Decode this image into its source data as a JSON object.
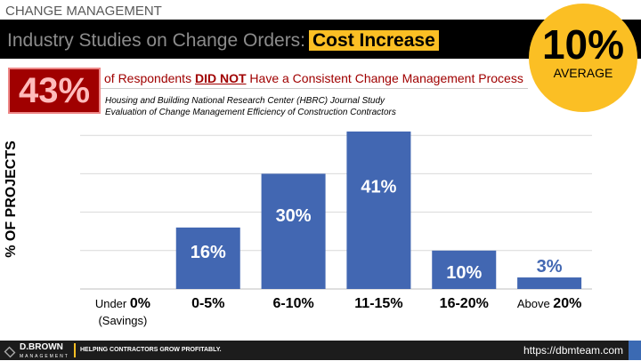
{
  "header": {
    "section": "CHANGE MANAGEMENT",
    "title": "Industry Studies on Change Orders:",
    "highlight": "Cost Increase"
  },
  "average": {
    "value": "10%",
    "label": "AVERAGE"
  },
  "stat": {
    "value": "43%",
    "pre": "of Respondents",
    "emph": "DID NOT",
    "post": "Have a Consistent Change Management Process"
  },
  "source": {
    "line1": "Housing and Building National Research Center (HBRC) Journal Study",
    "line2": "Evaluation of Change Management Efficiency of Construction Contractors"
  },
  "footer": {
    "brand": "D.BROWN",
    "brand_sub": "MANAGEMENT",
    "tagline": "HELPING CONTRACTORS GROW PROFITABLY.",
    "url": "https://dbmteam.com"
  },
  "colors": {
    "bar": "#4267b2",
    "accent": "#fbbf24",
    "red": "#a00000"
  },
  "chart_data": {
    "type": "bar",
    "ylabel": "% OF PROJECTS",
    "ylim": [
      0,
      40
    ],
    "grid": true,
    "categories": [
      {
        "pre": "Under ",
        "bold": "0%",
        "sub": "(Savings)"
      },
      {
        "pre": "",
        "bold": "0-5%",
        "sub": ""
      },
      {
        "pre": "",
        "bold": "6-10%",
        "sub": ""
      },
      {
        "pre": "",
        "bold": "11-15%",
        "sub": ""
      },
      {
        "pre": "",
        "bold": "16-20%",
        "sub": ""
      },
      {
        "pre": "Above ",
        "bold": "20%",
        "sub": ""
      }
    ],
    "values": [
      0,
      16,
      30,
      41,
      10,
      3
    ],
    "labels": [
      "",
      "16%",
      "30%",
      "41%",
      "10%",
      "3%"
    ]
  }
}
